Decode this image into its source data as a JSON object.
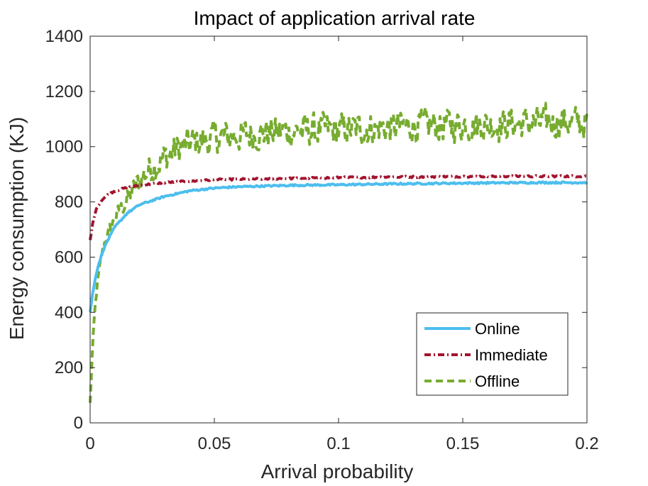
{
  "chart_data": {
    "type": "line",
    "title": "Impact of application arrival rate",
    "xlabel": "Arrival probability",
    "ylabel": "Energy consumption (KJ)",
    "xlim": [
      0,
      0.2
    ],
    "ylim": [
      0,
      1400
    ],
    "xticks": [
      0,
      0.05,
      0.1,
      0.15,
      0.2
    ],
    "xtick_labels": [
      "0",
      "0.05",
      "0.1",
      "0.15",
      "0.2"
    ],
    "yticks": [
      0,
      200,
      400,
      600,
      800,
      1000,
      1200,
      1400
    ],
    "ytick_labels": [
      "0",
      "200",
      "400",
      "600",
      "800",
      "1000",
      "1200",
      "1400"
    ],
    "grid": false,
    "legend_position": "bottom-right",
    "series": [
      {
        "name": "Online",
        "color": "#4DBEEE",
        "style": "solid",
        "x": [
          0,
          0.001,
          0.002,
          0.003,
          0.005,
          0.007,
          0.01,
          0.015,
          0.02,
          0.025,
          0.03,
          0.04,
          0.05,
          0.06,
          0.08,
          0.1,
          0.12,
          0.15,
          0.18,
          0.2
        ],
        "y": [
          400,
          470,
          520,
          560,
          620,
          660,
          710,
          760,
          790,
          805,
          820,
          840,
          850,
          855,
          860,
          862,
          865,
          868,
          870,
          870
        ]
      },
      {
        "name": "Immediate",
        "color": "#A2142F",
        "style": "dashdot",
        "x": [
          0,
          0.001,
          0.002,
          0.003,
          0.005,
          0.007,
          0.01,
          0.015,
          0.02,
          0.025,
          0.03,
          0.04,
          0.05,
          0.06,
          0.08,
          0.1,
          0.12,
          0.15,
          0.18,
          0.2
        ],
        "y": [
          660,
          720,
          760,
          785,
          810,
          825,
          840,
          852,
          860,
          865,
          870,
          875,
          880,
          882,
          885,
          888,
          890,
          892,
          893,
          893
        ]
      },
      {
        "name": "Offline",
        "color": "#77AC30",
        "style": "dashed",
        "x": [
          0,
          0.001,
          0.002,
          0.003,
          0.004,
          0.005,
          0.006,
          0.008,
          0.01,
          0.012,
          0.015,
          0.018,
          0.02,
          0.025,
          0.03,
          0.035,
          0.04,
          0.05,
          0.06,
          0.07,
          0.08,
          0.09,
          0.1,
          0.11,
          0.12,
          0.13,
          0.14,
          0.15,
          0.16,
          0.17,
          0.18,
          0.19,
          0.2
        ],
        "y": [
          70,
          280,
          420,
          510,
          570,
          620,
          660,
          700,
          740,
          770,
          810,
          850,
          880,
          930,
          960,
          990,
          1010,
          1030,
          1040,
          1050,
          1055,
          1060,
          1060,
          1065,
          1070,
          1075,
          1075,
          1080,
          1080,
          1085,
          1085,
          1090,
          1085
        ],
        "noise_amplitude": 80
      }
    ]
  }
}
